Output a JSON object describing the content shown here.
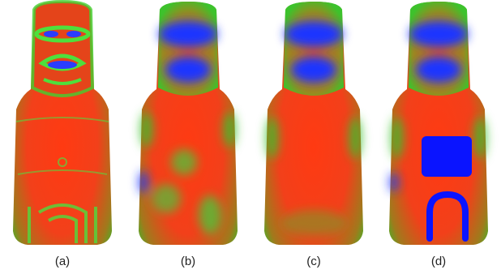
{
  "figure": {
    "panels": [
      {
        "id": "a",
        "caption": "(a)",
        "variant": "detailed-mapping"
      },
      {
        "id": "b",
        "caption": "(b)",
        "variant": "smoothed-patchy"
      },
      {
        "id": "c",
        "caption": "(c)",
        "variant": "smoothed"
      },
      {
        "id": "d",
        "caption": "(d)",
        "variant": "smoothed-with-marked-regions"
      }
    ],
    "colors": {
      "low": "#1e35ff",
      "mid": "#36d03a",
      "high": "#ff3010",
      "marker": "#0a14ff",
      "background": "#ffffff"
    }
  }
}
